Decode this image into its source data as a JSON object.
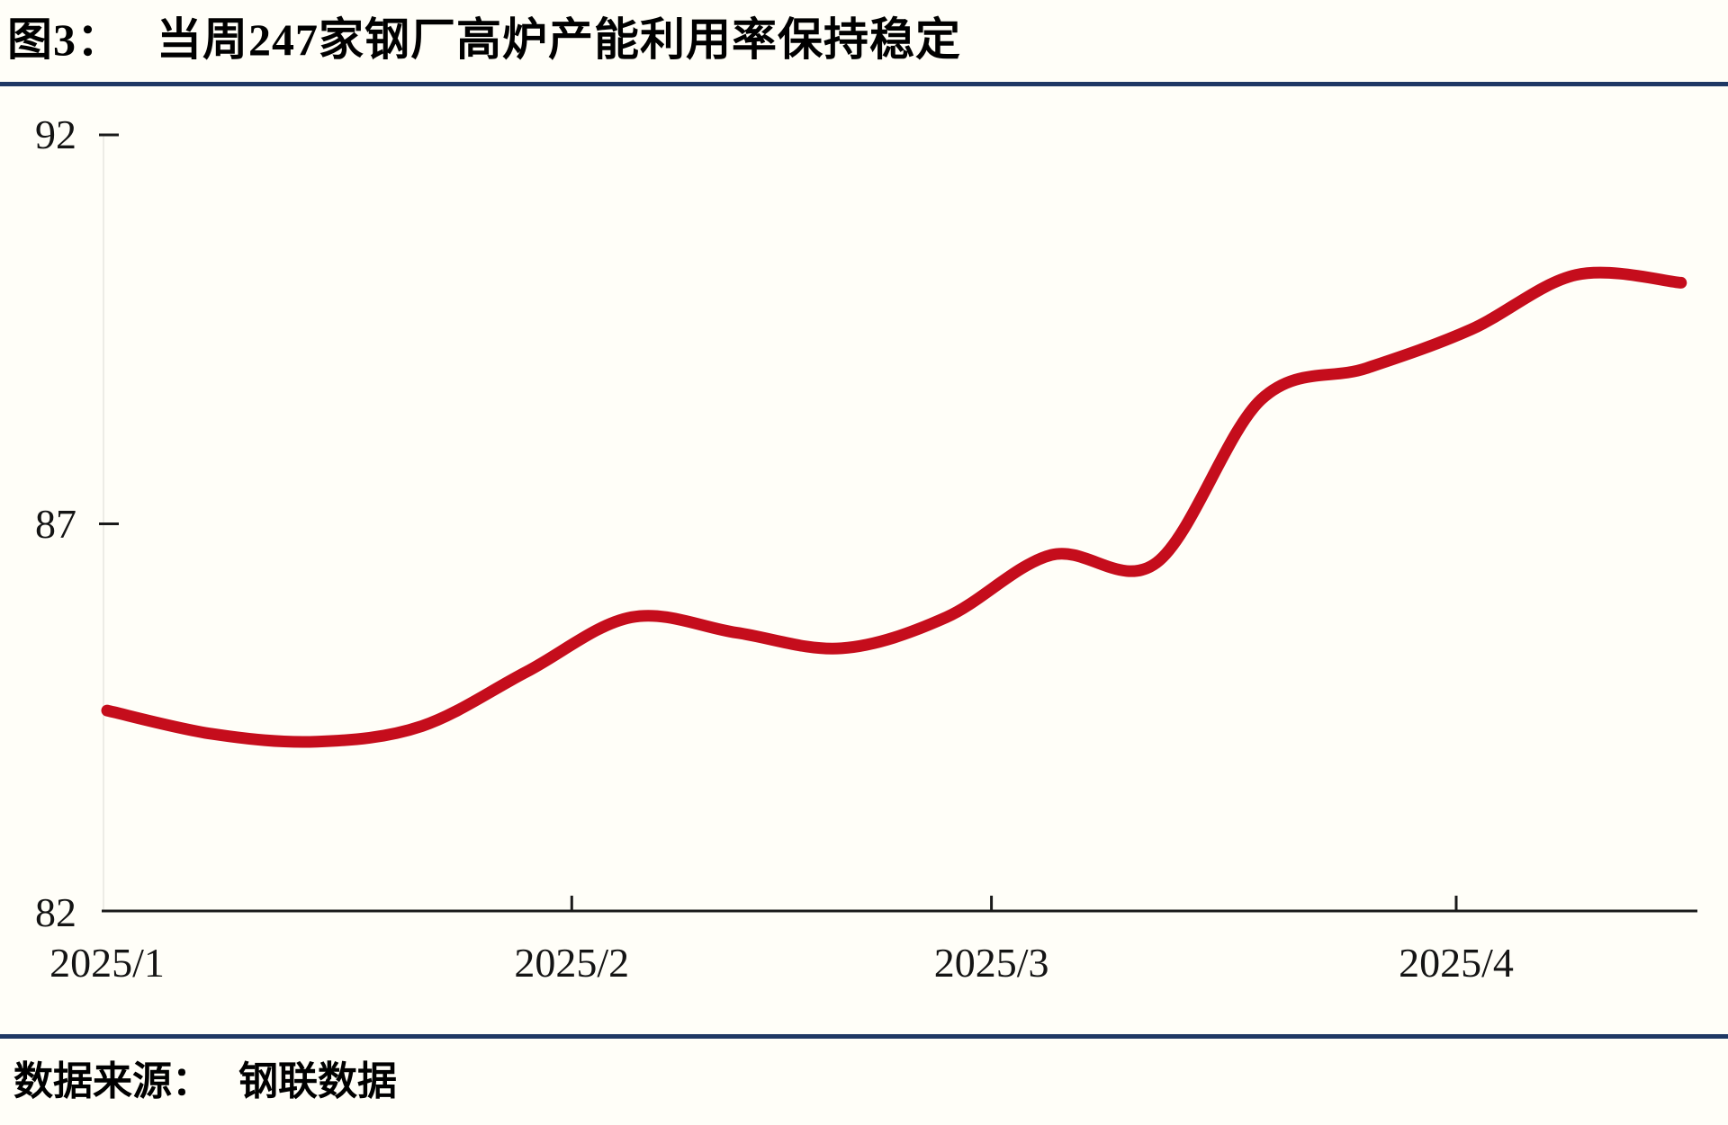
{
  "header": {
    "figure_label": "图3：",
    "title": "当周247家钢厂高炉产能利用率保持稳定"
  },
  "footer": {
    "source_label": "数据来源：",
    "source_value": "钢联数据"
  },
  "colors": {
    "line": "#C50D1C",
    "divider": "#1F3864",
    "axis": "#1A1A1A",
    "tick_label": "#141414",
    "background": "#FFFEF8"
  },
  "chart_data": {
    "type": "line",
    "title": "当周247家钢厂高炉产能利用率保持稳定",
    "unit": "%",
    "xlabel": "",
    "ylabel": "",
    "ylim": [
      82,
      92
    ],
    "y_ticks": [
      82,
      87,
      92
    ],
    "x_ticks": [
      {
        "label": "2025/1",
        "day": 0,
        "tick_line": false
      },
      {
        "label": "2025/2",
        "day": 31,
        "tick_line": true
      },
      {
        "label": "2025/3",
        "day": 59,
        "tick_line": true
      },
      {
        "label": "2025/4",
        "day": 90,
        "tick_line": true
      }
    ],
    "x_range_days": [
      0,
      106
    ],
    "grid": false,
    "legend": "none",
    "series": [
      {
        "name": "247家钢厂高炉产能利用率",
        "color": "#C50D1C",
        "points": [
          {
            "date": "2025/1/1",
            "day": 0,
            "value": 84.6
          },
          {
            "date": "2025/1/8",
            "day": 7,
            "value": 84.3
          },
          {
            "date": "2025/1/15",
            "day": 14,
            "value": 84.2
          },
          {
            "date": "2025/1/22",
            "day": 21,
            "value": 84.4
          },
          {
            "date": "2025/1/29",
            "day": 28,
            "value": 85.1
          },
          {
            "date": "2025/2/5",
            "day": 35,
            "value": 85.8
          },
          {
            "date": "2025/2/12",
            "day": 42,
            "value": 85.6
          },
          {
            "date": "2025/2/19",
            "day": 49,
            "value": 85.4
          },
          {
            "date": "2025/2/26",
            "day": 56,
            "value": 85.8
          },
          {
            "date": "2025/3/5",
            "day": 63,
            "value": 86.6
          },
          {
            "date": "2025/3/12",
            "day": 70,
            "value": 86.5
          },
          {
            "date": "2025/3/19",
            "day": 77,
            "value": 88.6
          },
          {
            "date": "2025/3/26",
            "day": 84,
            "value": 89.0
          },
          {
            "date": "2025/4/2",
            "day": 91,
            "value": 89.5
          },
          {
            "date": "2025/4/9",
            "day": 98,
            "value": 90.2
          },
          {
            "date": "2025/4/16",
            "day": 105,
            "value": 90.1
          }
        ]
      }
    ]
  }
}
